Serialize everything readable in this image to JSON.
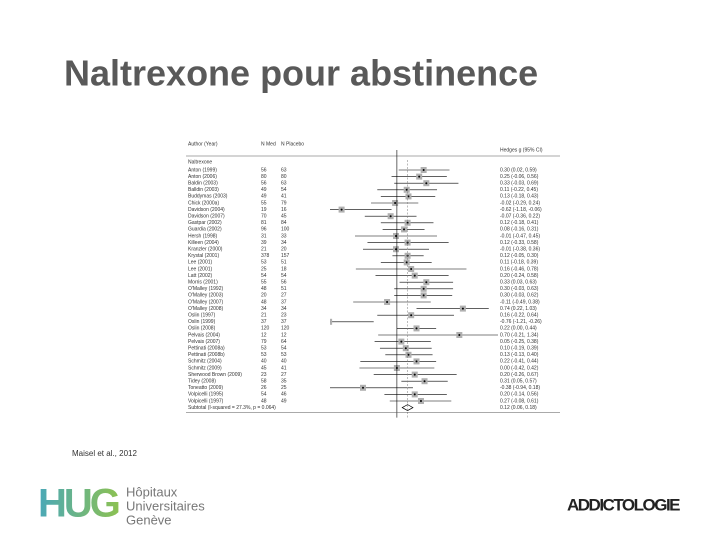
{
  "title": "Naltrexone pour abstinence",
  "forest_plot": {
    "headers": {
      "author": "Author (Year)",
      "n_med": "N Med",
      "n_placebo": "N Placebo",
      "effect": "Hedges g (95% CI)"
    },
    "group": "Naltrexone",
    "xlim": [
      -0.75,
      1.1
    ],
    "rows": [
      {
        "study": "Anton (1999)",
        "n_med": "56",
        "n_placebo": "63",
        "estimate": 0.3,
        "lower": 0.02,
        "upper": 0.59,
        "label": "0.30 (0.02, 0.59)"
      },
      {
        "study": "Anton (2006)",
        "n_med": "80",
        "n_placebo": "80",
        "estimate": 0.25,
        "lower": -0.06,
        "upper": 0.56,
        "label": "0.25 (-0.06, 0.56)"
      },
      {
        "study": "Baldin (2003)",
        "n_med": "56",
        "n_placebo": "63",
        "estimate": 0.33,
        "lower": -0.03,
        "upper": 0.69,
        "label": "0.33 (-0.03, 0.69)"
      },
      {
        "study": "Balldin (2003)",
        "n_med": "49",
        "n_placebo": "54",
        "estimate": 0.11,
        "lower": -0.22,
        "upper": 0.45,
        "label": "0.11 (-0.22, 0.45)"
      },
      {
        "study": "Buddymas (2003)",
        "n_med": "49",
        "n_placebo": "41",
        "estimate": 0.13,
        "lower": -0.18,
        "upper": 0.43,
        "label": "0.13 (-0.18, 0.43)"
      },
      {
        "study": "Chick (2000a)",
        "n_med": "55",
        "n_placebo": "79",
        "estimate": -0.02,
        "lower": -0.29,
        "upper": 0.24,
        "label": "-0.02 (-0.29, 0.24)"
      },
      {
        "study": "Davidson (2004)",
        "n_med": "19",
        "n_placebo": "16",
        "estimate": -0.62,
        "lower": -1.18,
        "upper": -0.06,
        "label": "-0.62 (-1.18, -0.06)"
      },
      {
        "study": "Davidson (2007)",
        "n_med": "70",
        "n_placebo": "45",
        "estimate": -0.07,
        "lower": -0.36,
        "upper": 0.22,
        "label": "-0.07 (-0.36, 0.22)"
      },
      {
        "study": "Gastpar (2002)",
        "n_med": "81",
        "n_placebo": "84",
        "estimate": 0.12,
        "lower": -0.18,
        "upper": 0.41,
        "label": "0.12 (-0.18, 0.41)"
      },
      {
        "study": "Guardia (2002)",
        "n_med": "96",
        "n_placebo": "100",
        "estimate": 0.08,
        "lower": -0.16,
        "upper": 0.31,
        "label": "0.08 (-0.16, 0.31)"
      },
      {
        "study": "Hersh (1998)",
        "n_med": "31",
        "n_placebo": "33",
        "estimate": -0.01,
        "lower": -0.47,
        "upper": 0.45,
        "label": "-0.01 (-0.47, 0.45)"
      },
      {
        "study": "Killeen (2004)",
        "n_med": "39",
        "n_placebo": "34",
        "estimate": 0.12,
        "lower": -0.33,
        "upper": 0.58,
        "label": "0.12 (-0.33, 0.58)"
      },
      {
        "study": "Kranzler (2000)",
        "n_med": "21",
        "n_placebo": "20",
        "estimate": -0.01,
        "lower": -0.38,
        "upper": 0.36,
        "label": "-0.01 (-0.38, 0.36)"
      },
      {
        "study": "Krystal (2001)",
        "n_med": "378",
        "n_placebo": "157",
        "estimate": 0.12,
        "lower": -0.05,
        "upper": 0.3,
        "label": "0.12 (-0.05, 0.30)"
      },
      {
        "study": "Lee (2001)",
        "n_med": "53",
        "n_placebo": "51",
        "estimate": 0.11,
        "lower": -0.18,
        "upper": 0.39,
        "label": "0.11 (-0.18, 0.39)"
      },
      {
        "study": "Lee (2001)",
        "n_med": "25",
        "n_placebo": "18",
        "estimate": 0.16,
        "lower": -0.46,
        "upper": 0.78,
        "label": "0.16 (-0.46, 0.78)"
      },
      {
        "study": "Latt (2002)",
        "n_med": "54",
        "n_placebo": "54",
        "estimate": 0.2,
        "lower": -0.24,
        "upper": 0.58,
        "label": "0.20 (-0.24, 0.58)"
      },
      {
        "study": "Morris (2001)",
        "n_med": "55",
        "n_placebo": "56",
        "estimate": 0.33,
        "lower": 0.03,
        "upper": 0.63,
        "label": "0.33 (0.03, 0.63)"
      },
      {
        "study": "O'Malley (1992)",
        "n_med": "48",
        "n_placebo": "51",
        "estimate": 0.3,
        "lower": -0.03,
        "upper": 0.63,
        "label": "0.30 (-0.03, 0.63)"
      },
      {
        "study": "O'Malley (2003)",
        "n_med": "20",
        "n_placebo": "27",
        "estimate": 0.3,
        "lower": -0.03,
        "upper": 0.62,
        "label": "0.30 (-0.03, 0.62)"
      },
      {
        "study": "O'Malley (2007)",
        "n_med": "48",
        "n_placebo": "37",
        "estimate": -0.11,
        "lower": -0.49,
        "upper": 0.38,
        "label": "-0.11 (-0.49, 0.38)"
      },
      {
        "study": "O'Malley (2008)",
        "n_med": "34",
        "n_placebo": "34",
        "estimate": 0.74,
        "lower": 0.22,
        "upper": 1.03,
        "label": "0.74 (0.22, 1.03)"
      },
      {
        "study": "Oslin (1997)",
        "n_med": "21",
        "n_placebo": "23",
        "estimate": 0.16,
        "lower": -0.22,
        "upper": 0.64,
        "label": "0.16 (-0.22, 0.64)"
      },
      {
        "study": "Oslin (1999)",
        "n_med": "37",
        "n_placebo": "37",
        "estimate": -0.76,
        "lower": -1.21,
        "upper": -0.26,
        "label": "-0.76 (-1.21, -0.26)"
      },
      {
        "study": "Oslin (2008)",
        "n_med": "120",
        "n_placebo": "120",
        "estimate": 0.22,
        "lower": 0.0,
        "upper": 0.44,
        "label": "0.22 (0.00, 0.44)"
      },
      {
        "study": "Pelvais (2004)",
        "n_med": "12",
        "n_placebo": "12",
        "estimate": 0.7,
        "lower": -0.21,
        "upper": 1.34,
        "label": "0.70 (-0.21, 1.34)"
      },
      {
        "study": "Pelvais (2007)",
        "n_med": "79",
        "n_placebo": "64",
        "estimate": 0.05,
        "lower": -0.25,
        "upper": 0.38,
        "label": "0.05 (-0.25, 0.38)"
      },
      {
        "study": "Pettinati (2008a)",
        "n_med": "53",
        "n_placebo": "54",
        "estimate": 0.1,
        "lower": -0.19,
        "upper": 0.39,
        "label": "0.10 (-0.19, 0.39)"
      },
      {
        "study": "Pettinati (2008b)",
        "n_med": "53",
        "n_placebo": "53",
        "estimate": 0.13,
        "lower": -0.13,
        "upper": 0.4,
        "label": "0.13 (-0.13, 0.40)"
      },
      {
        "study": "Schmitz (2004)",
        "n_med": "40",
        "n_placebo": "40",
        "estimate": 0.22,
        "lower": -0.41,
        "upper": 0.44,
        "label": "0.22 (-0.41, 0.44)"
      },
      {
        "study": "Schmitz (2009)",
        "n_med": "45",
        "n_placebo": "41",
        "estimate": 0.0,
        "lower": -0.42,
        "upper": 0.42,
        "label": "0.00 (-0.42, 0.42)"
      },
      {
        "study": "Sherwood Brown (2009)",
        "n_med": "23",
        "n_placebo": "27",
        "estimate": 0.2,
        "lower": -0.26,
        "upper": 0.67,
        "label": "0.20 (-0.26, 0.67)"
      },
      {
        "study": "Tidey (2008)",
        "n_med": "58",
        "n_placebo": "35",
        "estimate": 0.31,
        "lower": 0.05,
        "upper": 0.57,
        "label": "0.31 (0.05, 0.57)"
      },
      {
        "study": "Toneatto (2009)",
        "n_med": "26",
        "n_placebo": "25",
        "estimate": -0.38,
        "lower": -0.94,
        "upper": 0.18,
        "label": "-0.38 (-0.94, 0.18)"
      },
      {
        "study": "Volpicelli (1995)",
        "n_med": "54",
        "n_placebo": "46",
        "estimate": 0.2,
        "lower": -0.14,
        "upper": 0.56,
        "label": "0.20 (-0.14, 0.56)"
      },
      {
        "study": "Volpicelli (1997)",
        "n_med": "48",
        "n_placebo": "49",
        "estimate": 0.27,
        "lower": -0.08,
        "upper": 0.61,
        "label": "0.27 (-0.08, 0.61)"
      }
    ],
    "subtotal": {
      "study": "Subtotal (I-squared = 27.3%, p = 0.064)",
      "estimate": 0.12,
      "lower": 0.06,
      "upper": 0.18,
      "label": "0.12 (0.06, 0.18)"
    }
  },
  "citation": "Maisel et al., 2012",
  "logo_left": {
    "mark": "HUG",
    "lines": [
      "Hôpitaux",
      "Universitaires",
      "Genève"
    ]
  },
  "logo_right": "ADDICTOLOGIE"
}
